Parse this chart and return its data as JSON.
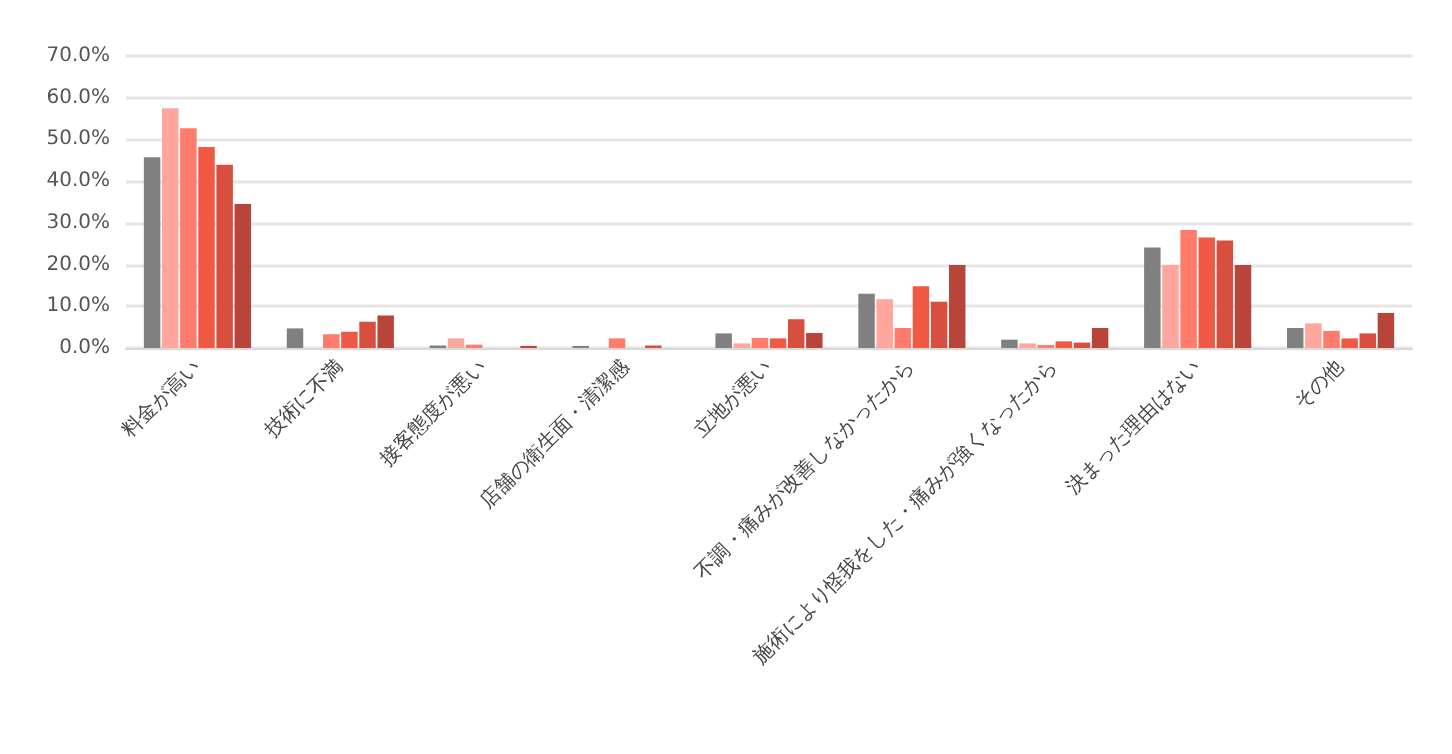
{
  "chart_data": {
    "type": "bar",
    "categories": [
      "料金が高い",
      "技術に不満",
      "接客態度が悪い",
      "店舗の衛生面・清潔感",
      "立地が悪い",
      "不調・痛みが改善しなかったから",
      "施術により怪我をした・痛みが強くなったから",
      "決まった理由はない",
      "その他"
    ],
    "series": [
      {
        "color": "#808080",
        "values": [
          45.7,
          4.7,
          0.6,
          0.5,
          3.5,
          13.0,
          2.0,
          24.1,
          4.8
        ]
      },
      {
        "color": "#ffa69e",
        "values": [
          57.5,
          0,
          2.3,
          0,
          1.1,
          11.7,
          1.1,
          19.9,
          5.9
        ]
      },
      {
        "color": "#ff7b6b",
        "values": [
          52.7,
          3.3,
          0.8,
          2.3,
          2.4,
          4.8,
          0.7,
          28.3,
          4.1
        ]
      },
      {
        "color": "#f05a45",
        "values": [
          48.2,
          3.9,
          0,
          0,
          2.3,
          14.8,
          1.6,
          26.5,
          2.3
        ]
      },
      {
        "color": "#d94f3f",
        "values": [
          43.9,
          6.3,
          0,
          0.6,
          6.9,
          11.1,
          1.3,
          25.8,
          3.5
        ]
      },
      {
        "color": "#b9443a",
        "values": [
          34.5,
          7.8,
          0.5,
          0,
          3.6,
          19.9,
          4.8,
          19.9,
          8.4
        ]
      }
    ],
    "ylim": [
      0,
      70
    ],
    "yticks": [
      {
        "value": 0,
        "label": "0.0%"
      },
      {
        "value": 10,
        "label": "10.0%"
      },
      {
        "value": 20,
        "label": "20.0%"
      },
      {
        "value": 30,
        "label": "30.0%"
      },
      {
        "value": 40,
        "label": "40.0%"
      },
      {
        "value": 50,
        "label": "50.0%"
      },
      {
        "value": 60,
        "label": "60.0%"
      },
      {
        "value": 70,
        "label": "70.0%"
      }
    ],
    "grid": "y"
  }
}
